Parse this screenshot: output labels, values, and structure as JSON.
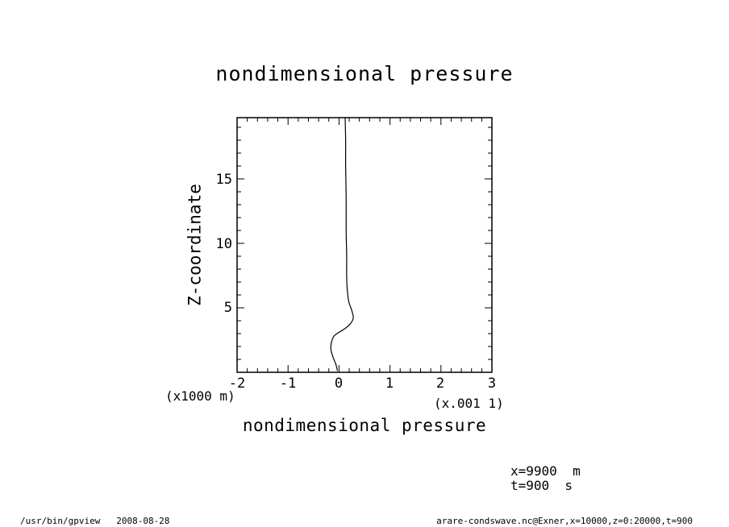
{
  "window": {
    "footer_left": "/usr/bin/gpview   2008-08-28",
    "footer_right": "arare-condswave.nc@Exner,x=10000,z=0:20000,t=900"
  },
  "info": {
    "line1": "x=9900  m",
    "line2": "t=900  s"
  },
  "chart_data": {
    "type": "line",
    "title": "nondimensional pressure",
    "xlabel": "nondimensional pressure",
    "ylabel": "Z-coordinate",
    "x_scale_label": "(x.001 1)",
    "y_scale_label": "(x1000 m)",
    "xlim": [
      -2,
      3
    ],
    "ylim": [
      0,
      19.75
    ],
    "xticks": [
      -2,
      -1,
      0,
      1,
      2,
      3
    ],
    "xtick_labels": [
      "-2",
      "-1",
      "0",
      "1",
      "2",
      "3"
    ],
    "yticks": [
      5,
      10,
      15
    ],
    "ytick_labels": [
      "5",
      "10",
      "15"
    ],
    "grid": false,
    "series": [
      {
        "x": [
          -0.03,
          -0.06,
          -0.12,
          -0.16,
          -0.15,
          -0.1,
          0.0,
          0.12,
          0.22,
          0.28,
          0.25,
          0.19,
          0.16,
          0.15,
          0.15,
          0.14,
          0.14,
          0.13,
          0.13,
          0.12
        ],
        "y": [
          0.1,
          0.6,
          1.2,
          1.8,
          2.3,
          2.8,
          3.1,
          3.4,
          3.75,
          4.2,
          4.8,
          5.5,
          6.5,
          7.5,
          9.0,
          11.0,
          13.5,
          16.0,
          18.0,
          19.75
        ]
      }
    ]
  }
}
